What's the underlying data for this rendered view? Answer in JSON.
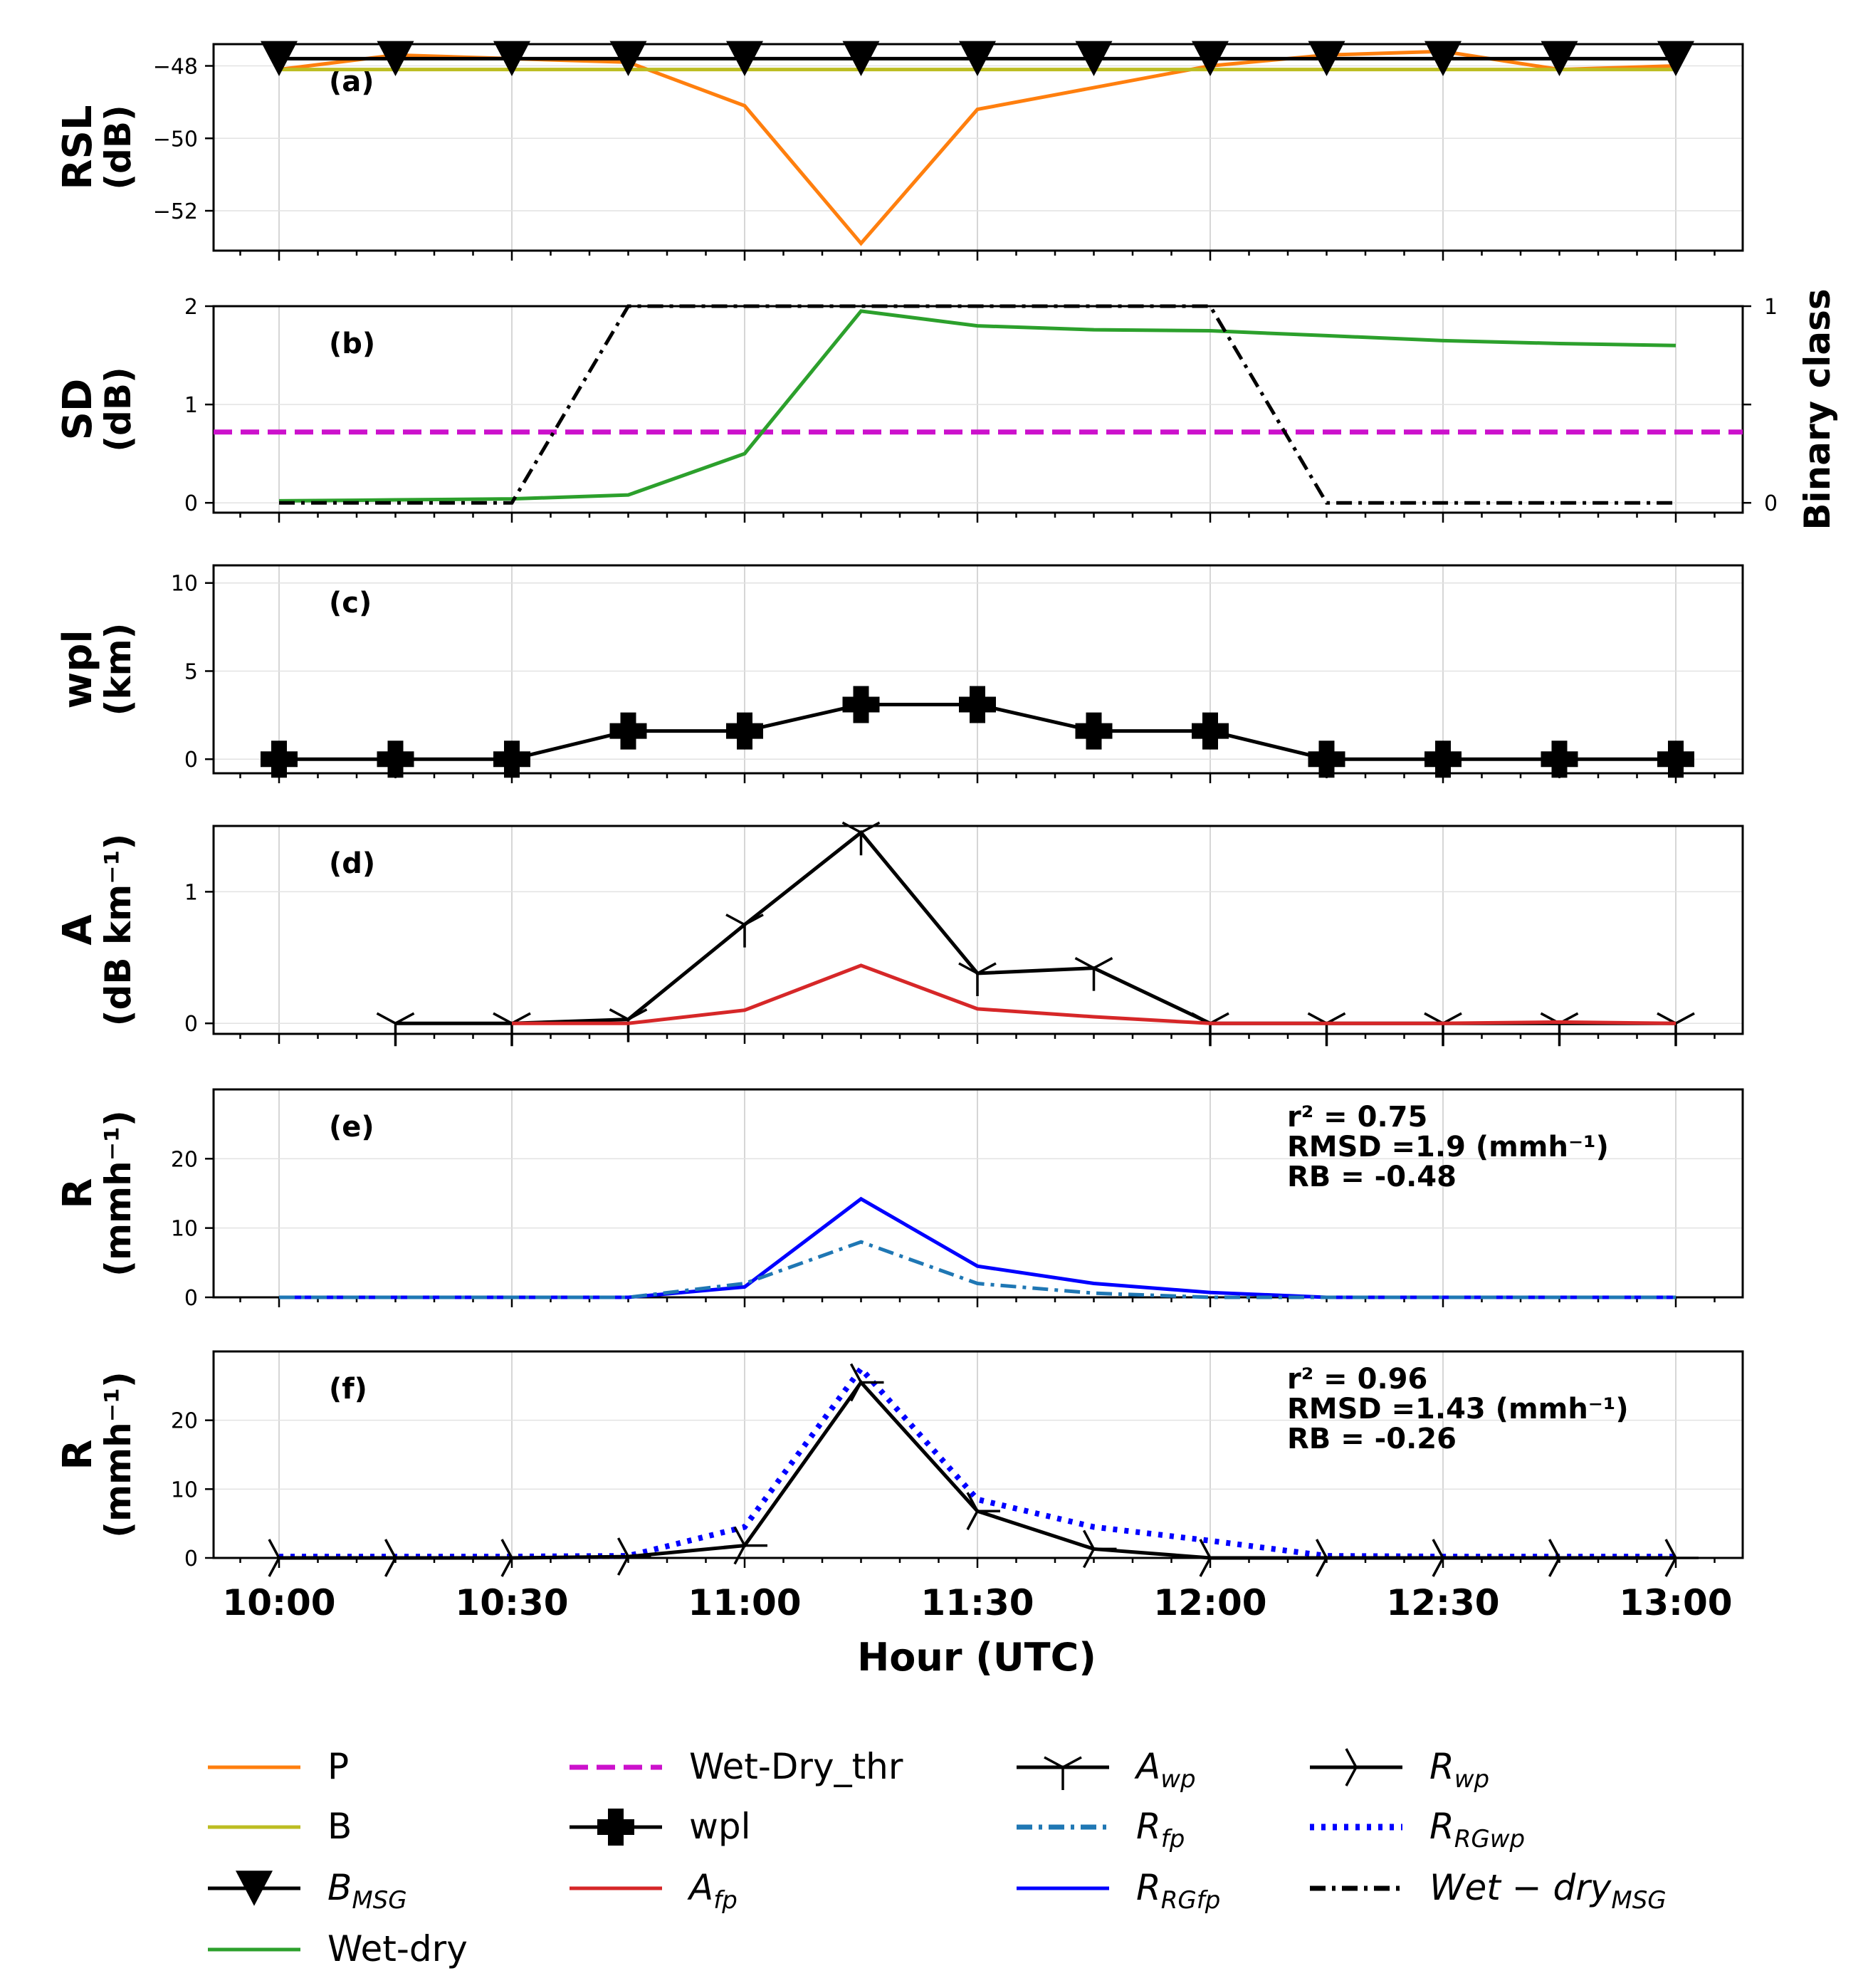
{
  "chart_data": {
    "type": "line",
    "x_tick_labels": [
      "10:00",
      "10:30",
      "11:00",
      "11:30",
      "12:00",
      "12:30",
      "13:00"
    ],
    "xlabel": "Hour (UTC)",
    "x_minutes": [
      0,
      15,
      30,
      45,
      60,
      75,
      90,
      105,
      120,
      135,
      150,
      165,
      180
    ],
    "panels": [
      {
        "label": "(a)",
        "ylabel": [
          "RSL",
          "(dB)"
        ],
        "ylim": [
          -53.1,
          -47.4
        ],
        "yticks": [
          -52,
          -50,
          -48
        ],
        "ytick_labels": [
          "−52",
          "−50",
          "−48"
        ],
        "series": [
          {
            "key": "P",
            "values": [
              -48.1,
              -47.7,
              -47.8,
              -47.9,
              -49.1,
              -52.9,
              -49.2,
              -48.6,
              -48.0,
              -47.7,
              -47.6,
              -48.1,
              -48.0
            ]
          },
          {
            "key": "B",
            "values": [
              -48.1,
              -48.1,
              -48.1,
              -48.1,
              -48.1,
              -48.1,
              -48.1,
              -48.1,
              -48.1,
              -48.1,
              -48.1,
              -48.1,
              -48.1
            ]
          },
          {
            "key": "B_MSG",
            "values": [
              -47.8,
              -47.8,
              -47.8,
              -47.8,
              -47.8,
              -47.8,
              -47.8,
              -47.8,
              -47.8,
              -47.8,
              -47.8,
              -47.8,
              -47.8
            ]
          }
        ]
      },
      {
        "label": "(b)",
        "ylabel": [
          "SD",
          "(dB)"
        ],
        "ylim": [
          -0.1,
          2.0
        ],
        "yticks": [
          0,
          1,
          2
        ],
        "ytick_labels": [
          "0",
          "1",
          "2"
        ],
        "y2label": "Binary class",
        "y2lim": [
          -0.05,
          1.0
        ],
        "y2ticks": [
          0,
          0.5,
          1
        ],
        "y2tick_labels": [
          "0",
          "",
          "1"
        ],
        "threshold": 0.72,
        "series": [
          {
            "key": "Wet-dry",
            "values": [
              0.02,
              0.03,
              0.04,
              0.08,
              0.5,
              1.95,
              1.8,
              1.76,
              1.75,
              1.7,
              1.65,
              1.62,
              1.6
            ]
          },
          {
            "key": "Wet-dry_MSG",
            "axis": "y2",
            "values": [
              0,
              0,
              0,
              1,
              1,
              1,
              1,
              1,
              1,
              0,
              0,
              0,
              0
            ]
          }
        ]
      },
      {
        "label": "(c)",
        "ylabel": [
          "wpl",
          "(km)"
        ],
        "ylim": [
          -0.8,
          11
        ],
        "yticks": [
          0,
          5,
          10
        ],
        "ytick_labels": [
          "0",
          "5",
          "10"
        ],
        "series": [
          {
            "key": "wpl",
            "values": [
              0,
              0,
              0,
              1.6,
              1.6,
              3.1,
              3.1,
              1.6,
              1.6,
              0,
              0,
              0,
              0
            ]
          }
        ]
      },
      {
        "label": "(d)",
        "ylabel": [
          "A",
          "(dB km⁻¹)"
        ],
        "ylim": [
          -0.08,
          1.5
        ],
        "yticks": [
          0,
          1
        ],
        "ytick_labels": [
          "0",
          "1"
        ],
        "series": [
          {
            "key": "A_wp",
            "start": 1,
            "values": [
              0,
              0,
              0,
              0.03,
              0.75,
              1.45,
              0.38,
              0.42,
              0,
              0,
              0,
              0,
              0
            ]
          },
          {
            "key": "A_fp",
            "start": 2,
            "values": [
              0,
              0,
              0,
              0,
              0.1,
              0.44,
              0.11,
              0.05,
              0,
              0,
              0,
              0.01,
              0
            ]
          }
        ]
      },
      {
        "label": "(e)",
        "ylabel": [
          "R",
          "(mmh⁻¹)"
        ],
        "ylim": [
          0,
          30
        ],
        "yticks": [
          0,
          10,
          20
        ],
        "ytick_labels": [
          "0",
          "10",
          "20"
        ],
        "stats": [
          "r² = 0.75",
          "RMSD =1.9 (mmh⁻¹)",
          "RB = -0.48"
        ],
        "series": [
          {
            "key": "R_RG_fp",
            "values": [
              0,
              0,
              0,
              0,
              1.5,
              14.2,
              4.5,
              2.0,
              0.7,
              0,
              0,
              0,
              0
            ]
          },
          {
            "key": "R_fp",
            "values": [
              0,
              0,
              0,
              0,
              2.0,
              8.0,
              2.0,
              0.6,
              0,
              0,
              0,
              0,
              0
            ]
          }
        ]
      },
      {
        "label": "(f)",
        "ylabel": [
          "R",
          "(mmh⁻¹)"
        ],
        "ylim": [
          0,
          30
        ],
        "yticks": [
          0,
          10,
          20
        ],
        "ytick_labels": [
          "0",
          "10",
          "20"
        ],
        "stats": [
          "r² = 0.96",
          "RMSD =1.43 (mmh⁻¹)",
          "RB = -0.26"
        ],
        "series": [
          {
            "key": "R_RG_wp",
            "values": [
              0.2,
              0.2,
              0.2,
              0.3,
              4.5,
              27.5,
              8.5,
              4.5,
              2.5,
              0.3,
              0.2,
              0.2,
              0.2
            ]
          },
          {
            "key": "R_wp",
            "values": [
              0,
              0,
              0,
              0.2,
              1.8,
              25.5,
              6.8,
              1.3,
              0,
              0,
              0,
              0,
              0
            ]
          }
        ]
      }
    ],
    "legend": [
      {
        "key": "P",
        "label": "P",
        "color": "#ff7f0e",
        "style": "solid"
      },
      {
        "key": "B",
        "label": "B",
        "color": "#bcbd22",
        "style": "solid"
      },
      {
        "key": "B_MSG",
        "label": "B",
        "sub": "MSG",
        "color": "#000000",
        "style": "solid",
        "marker": "tri_down"
      },
      {
        "key": "Wet-dry",
        "label": "Wet-dry",
        "color": "#2ca02c",
        "style": "solid"
      },
      {
        "key": "Wet-Dry_thr",
        "label": "Wet-Dry_thr",
        "color": "#cc11cc",
        "style": "dashed"
      },
      {
        "key": "wpl",
        "label": "wpl",
        "color": "#000000",
        "style": "solid",
        "marker": "plus"
      },
      {
        "key": "A_fp",
        "label": "A",
        "sub": "fp",
        "color": "#d62728",
        "style": "solid"
      },
      {
        "key": "A_wp",
        "label": "A",
        "sub": "wp",
        "color": "#000000",
        "style": "solid",
        "marker": "tri_down_line"
      },
      {
        "key": "R_fp",
        "label": "R",
        "sub": "fp",
        "color": "#1f77b4",
        "style": "dashdot"
      },
      {
        "key": "R_RG_fp",
        "label": "R",
        "sub": "RGfp",
        "color": "#0000ff",
        "style": "solid"
      },
      {
        "key": "R_wp",
        "label": "R",
        "sub": "wp",
        "color": "#000000",
        "style": "solid",
        "marker": "tri_right"
      },
      {
        "key": "R_RG_wp",
        "label": "R",
        "sub": "RGwp",
        "color": "#0000ff",
        "style": "dotted"
      },
      {
        "key": "Wet-dry_MSG",
        "label": "Wet − dry",
        "sub": "MSG",
        "color": "#000000",
        "style": "dashdot"
      }
    ]
  }
}
